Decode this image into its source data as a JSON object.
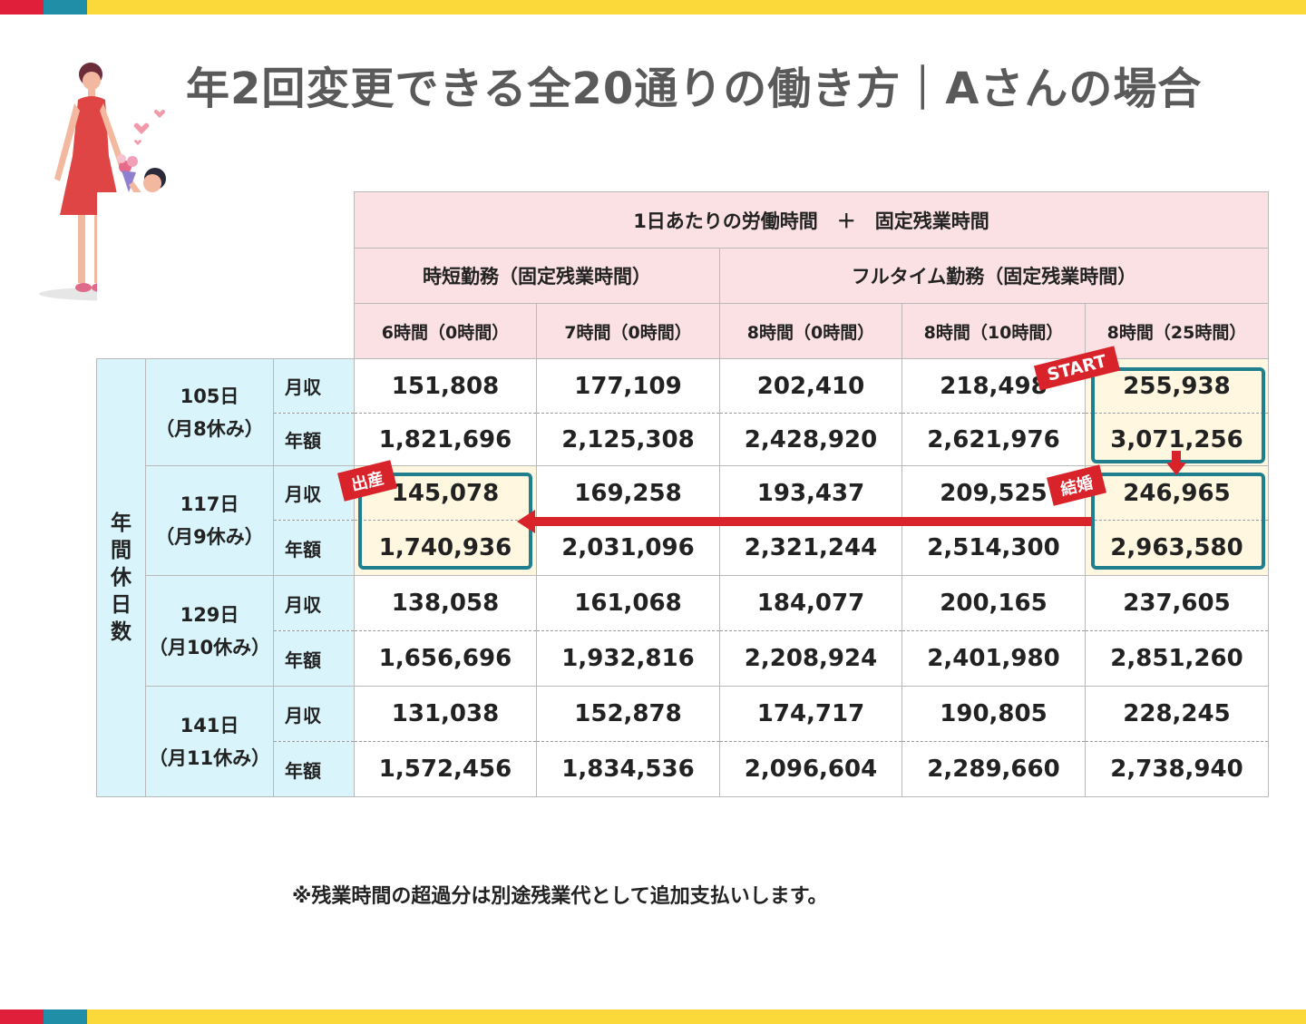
{
  "title": "年2回変更できる全20通りの働き方｜Aさんの場合",
  "header": {
    "top": "1日あたりの労働時間　＋　固定残業時間",
    "groups": [
      "時短勤務（固定残業時間）",
      "フルタイム勤務（固定残業時間）"
    ],
    "columns": [
      "6時間（0時間）",
      "7時間（0時間）",
      "8時間（0時間）",
      "8時間（10時間）",
      "8時間（25時間）"
    ]
  },
  "side_label": "年間休日数",
  "row_kinds": {
    "monthly": "月収",
    "annual": "年額"
  },
  "rows": [
    {
      "days": "105日",
      "sub": "（月8休み）",
      "monthly": [
        "151,808",
        "177,109",
        "202,410",
        "218,498",
        "255,938"
      ],
      "annual": [
        "1,821,696",
        "2,125,308",
        "2,428,920",
        "2,621,976",
        "3,071,256"
      ]
    },
    {
      "days": "117日",
      "sub": "（月9休み）",
      "monthly": [
        "145,078",
        "169,258",
        "193,437",
        "209,525",
        "246,965"
      ],
      "annual": [
        "1,740,936",
        "2,031,096",
        "2,321,244",
        "2,514,300",
        "2,963,580"
      ]
    },
    {
      "days": "129日",
      "sub": "（月10休み）",
      "monthly": [
        "138,058",
        "161,068",
        "184,077",
        "200,165",
        "237,605"
      ],
      "annual": [
        "1,656,696",
        "1,932,816",
        "2,208,924",
        "2,401,980",
        "2,851,260"
      ]
    },
    {
      "days": "141日",
      "sub": "（月11休み）",
      "monthly": [
        "131,038",
        "152,878",
        "174,717",
        "190,805",
        "228,245"
      ],
      "annual": [
        "1,572,456",
        "1,834,536",
        "2,096,604",
        "2,289,660",
        "2,738,940"
      ]
    }
  ],
  "tags": {
    "start": "START",
    "marriage": "結婚",
    "birth": "出産"
  },
  "note": "※残業時間の超過分は別途残業代として追加支払いします。",
  "colors": {
    "accent_red": "#d8232a",
    "teal": "#1f7f8f",
    "header_pink": "#fbe1e4",
    "side_blue": "#d9f5fb",
    "highlight": "#fff7e0"
  }
}
